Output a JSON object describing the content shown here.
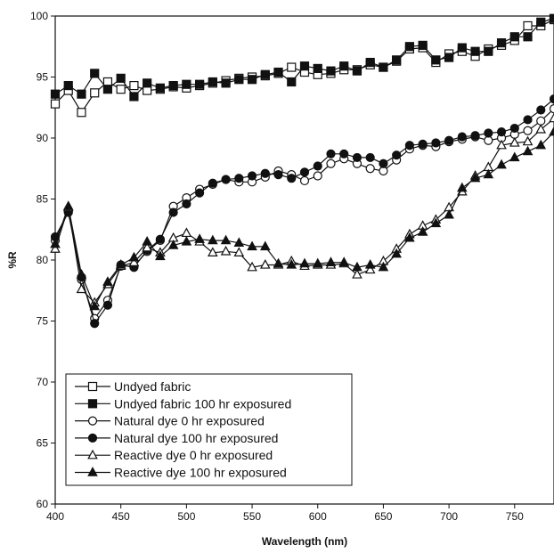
{
  "chart_data": {
    "type": "line",
    "title": "",
    "xlabel": "Wavelength (nm)",
    "ylabel": "%R",
    "xlim": [
      400,
      780
    ],
    "ylim": [
      60,
      100
    ],
    "xticks": [
      400,
      450,
      500,
      550,
      600,
      650,
      700,
      750
    ],
    "yticks": [
      60,
      65,
      70,
      75,
      80,
      85,
      90,
      95,
      100
    ],
    "grid": false,
    "legend_position": "bottom-left",
    "x": [
      400,
      410,
      420,
      430,
      440,
      450,
      460,
      470,
      480,
      490,
      500,
      510,
      520,
      530,
      540,
      550,
      560,
      570,
      580,
      590,
      600,
      610,
      620,
      630,
      640,
      650,
      660,
      670,
      680,
      690,
      700,
      710,
      720,
      730,
      740,
      750,
      760,
      770,
      780
    ],
    "series": [
      {
        "name": "Undyed  fabric",
        "marker": "square-open",
        "values": [
          92.8,
          93.9,
          92.1,
          93.7,
          94.6,
          94.0,
          94.3,
          93.9,
          94.0,
          94.2,
          94.1,
          94.3,
          94.5,
          94.7,
          94.9,
          95.0,
          95.1,
          95.3,
          95.8,
          95.4,
          95.2,
          95.3,
          95.6,
          95.6,
          96.0,
          95.8,
          96.3,
          97.3,
          97.4,
          96.2,
          96.9,
          97.1,
          96.7,
          97.3,
          97.6,
          98.0,
          99.2,
          99.2,
          99.7
        ]
      },
      {
        "name": "Undyed fabric 100 hr exposured",
        "marker": "square-filled",
        "values": [
          93.6,
          94.3,
          93.6,
          95.3,
          94.0,
          94.9,
          93.4,
          94.5,
          94.1,
          94.3,
          94.4,
          94.4,
          94.6,
          94.5,
          94.8,
          94.8,
          95.2,
          95.4,
          94.6,
          95.9,
          95.7,
          95.5,
          95.9,
          95.5,
          96.2,
          95.8,
          96.4,
          97.5,
          97.6,
          96.4,
          96.6,
          97.4,
          97.1,
          97.1,
          97.8,
          98.3,
          98.3,
          99.5,
          99.8
        ]
      },
      {
        "name": "Natural dye 0 hr exposured",
        "marker": "circle-open",
        "values": [
          81.6,
          84.0,
          78.4,
          75.2,
          76.7,
          79.5,
          79.5,
          80.7,
          81.6,
          84.4,
          85.1,
          85.8,
          86.2,
          86.6,
          86.4,
          86.4,
          86.8,
          87.3,
          87.0,
          86.5,
          86.9,
          87.9,
          88.3,
          87.9,
          87.5,
          87.3,
          88.2,
          89.1,
          89.4,
          89.3,
          89.7,
          89.9,
          90.1,
          89.8,
          90.0,
          90.3,
          90.6,
          91.4,
          92.4
        ]
      },
      {
        "name": "Natural dye 100 hr exposured",
        "marker": "circle-filled",
        "values": [
          81.9,
          83.9,
          78.6,
          74.8,
          76.3,
          79.6,
          79.4,
          80.8,
          81.7,
          83.9,
          84.6,
          85.5,
          86.3,
          86.6,
          86.7,
          86.9,
          87.1,
          87.0,
          86.7,
          87.2,
          87.7,
          88.7,
          88.7,
          88.4,
          88.4,
          87.9,
          88.6,
          89.4,
          89.5,
          89.6,
          89.8,
          90.1,
          90.2,
          90.4,
          90.5,
          90.8,
          91.5,
          92.3,
          93.2
        ]
      },
      {
        "name": "Reactive dye 0 hr exposured",
        "marker": "triangle-open",
        "values": [
          80.9,
          84.3,
          77.6,
          76.5,
          78.0,
          79.5,
          79.8,
          81.0,
          80.6,
          81.8,
          82.2,
          81.5,
          80.6,
          80.7,
          80.6,
          79.4,
          79.6,
          79.6,
          79.9,
          79.5,
          79.6,
          79.6,
          79.7,
          78.8,
          79.2,
          79.9,
          80.9,
          82.1,
          82.8,
          83.3,
          84.3,
          85.6,
          86.9,
          87.6,
          89.4,
          89.6,
          89.7,
          90.7,
          91.6
        ]
      },
      {
        "name": "Reactive dye 100 hr exposured",
        "marker": "triangle-filled",
        "values": [
          81.3,
          84.4,
          78.8,
          76.2,
          78.2,
          79.6,
          80.2,
          81.5,
          80.3,
          81.2,
          81.5,
          81.7,
          81.6,
          81.6,
          81.4,
          81.1,
          81.1,
          79.7,
          79.6,
          79.7,
          79.7,
          79.8,
          79.8,
          79.4,
          79.6,
          79.4,
          80.5,
          81.8,
          82.3,
          83.0,
          83.7,
          85.9,
          86.7,
          87.0,
          87.8,
          88.4,
          88.9,
          89.4,
          90.5
        ]
      }
    ]
  }
}
